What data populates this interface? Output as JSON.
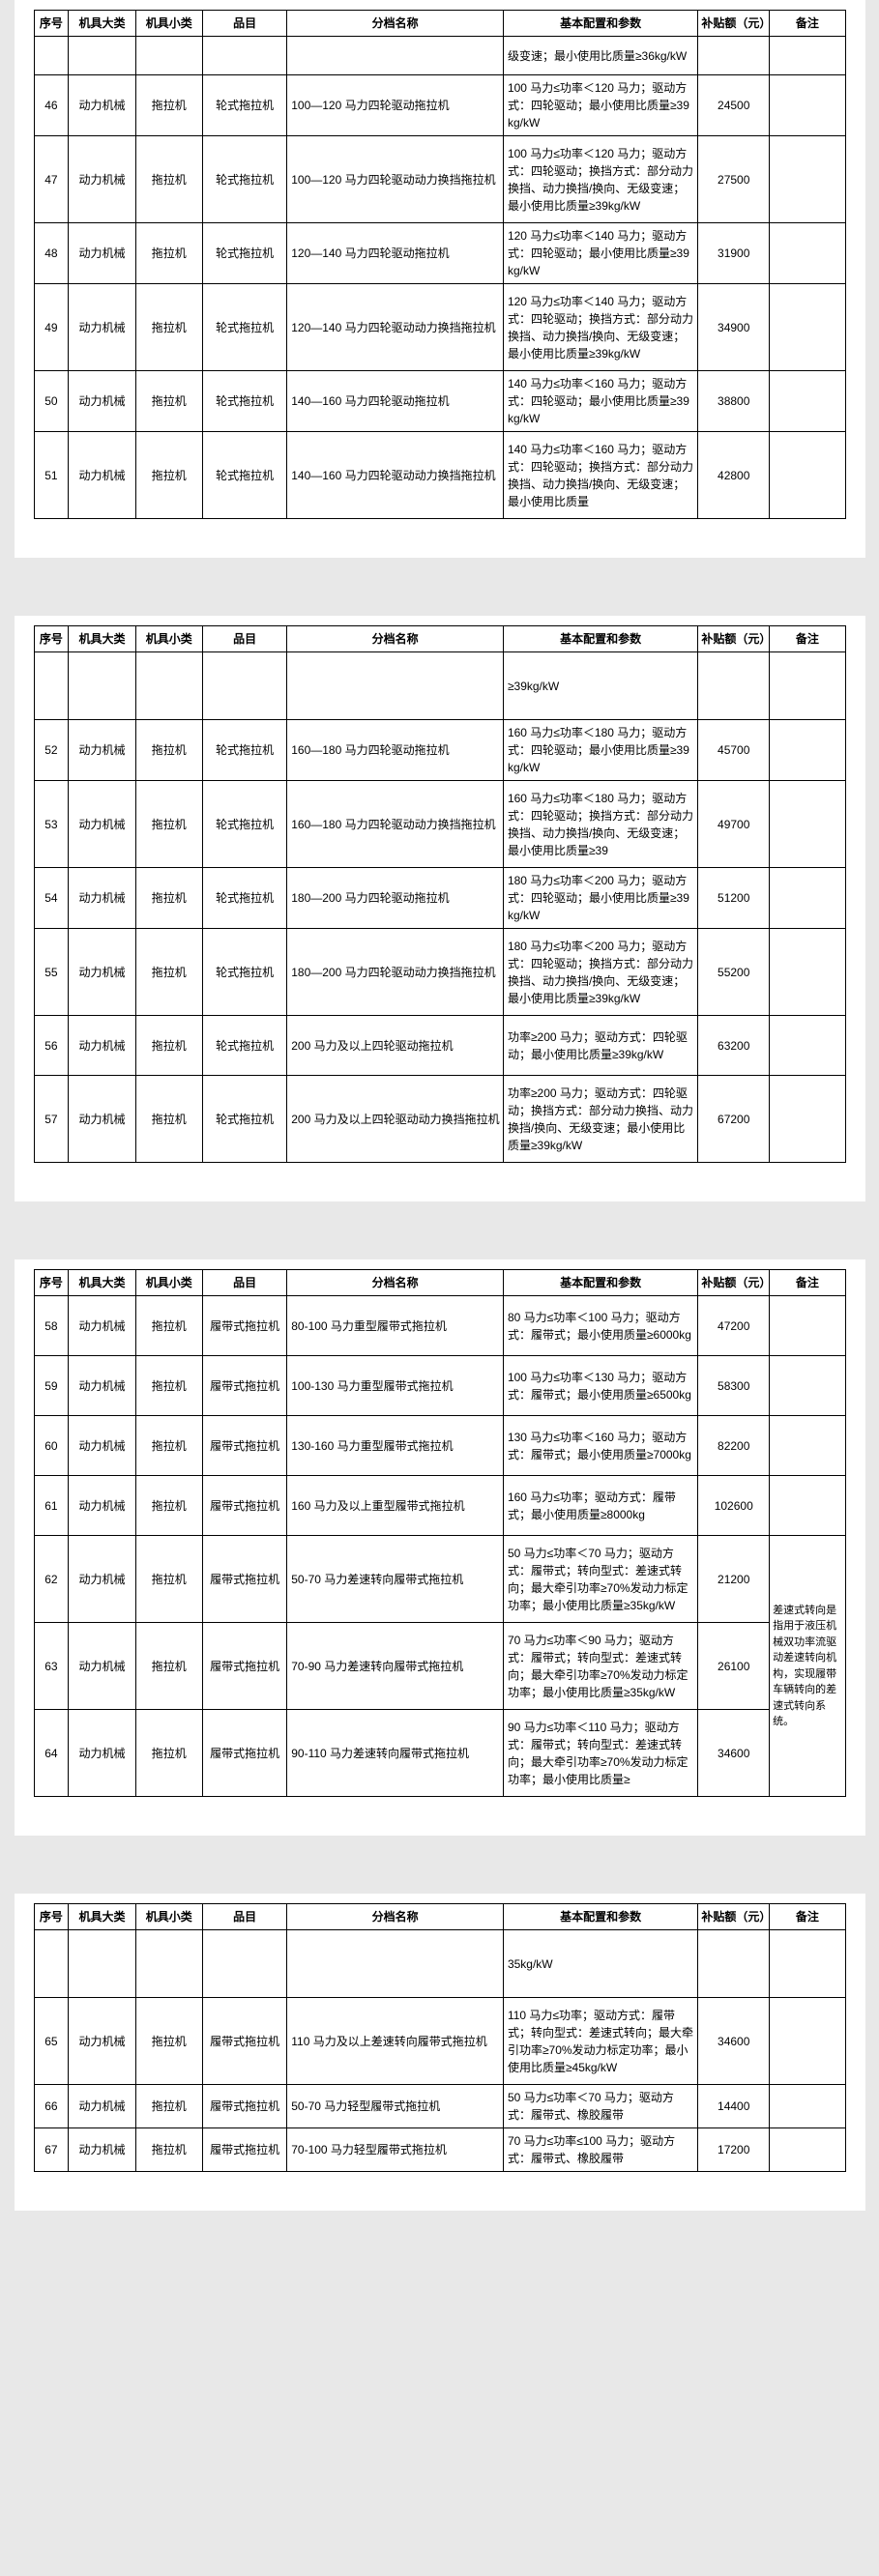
{
  "headers": {
    "seq": "序号",
    "cat1": "机具大类",
    "cat2": "机具小类",
    "item": "品目",
    "name": "分档名称",
    "spec": "基本配置和参数",
    "subsidy": "补贴额（元）",
    "note": "备注"
  },
  "page1": {
    "topFrag": "级变速；最小使用比质量≥36kg/kW",
    "rows": [
      {
        "seq": "46",
        "cat1": "动力机械",
        "cat2": "拖拉机",
        "item": "轮式拖拉机",
        "name": "100—120 马力四轮驱动拖拉机",
        "spec": "100 马力≤功率＜120 马力；驱动方式：四轮驱动；最小使用比质量≥39kg/kW",
        "sub": "24500"
      },
      {
        "seq": "47",
        "cat1": "动力机械",
        "cat2": "拖拉机",
        "item": "轮式拖拉机",
        "name": "100—120 马力四轮驱动动力换挡拖拉机",
        "spec": "100 马力≤功率＜120 马力；驱动方式：四轮驱动；换挡方式：部分动力换挡、动力换挡/换向、无级变速；最小使用比质量≥39kg/kW",
        "sub": "27500"
      },
      {
        "seq": "48",
        "cat1": "动力机械",
        "cat2": "拖拉机",
        "item": "轮式拖拉机",
        "name": "120—140 马力四轮驱动拖拉机",
        "spec": "120 马力≤功率＜140 马力；驱动方式：四轮驱动；最小使用比质量≥39kg/kW",
        "sub": "31900"
      },
      {
        "seq": "49",
        "cat1": "动力机械",
        "cat2": "拖拉机",
        "item": "轮式拖拉机",
        "name": "120—140 马力四轮驱动动力换挡拖拉机",
        "spec": "120 马力≤功率＜140 马力；驱动方式：四轮驱动；换挡方式：部分动力换挡、动力换挡/换向、无级变速；最小使用比质量≥39kg/kW",
        "sub": "34900"
      },
      {
        "seq": "50",
        "cat1": "动力机械",
        "cat2": "拖拉机",
        "item": "轮式拖拉机",
        "name": "140—160 马力四轮驱动拖拉机",
        "spec": "140 马力≤功率＜160 马力；驱动方式：四轮驱动；最小使用比质量≥39kg/kW",
        "sub": "38800"
      },
      {
        "seq": "51",
        "cat1": "动力机械",
        "cat2": "拖拉机",
        "item": "轮式拖拉机",
        "name": "140—160 马力四轮驱动动力换挡拖拉机",
        "spec": "140 马力≤功率＜160 马力；驱动方式：四轮驱动；换挡方式：部分动力换挡、动力换挡/换向、无级变速；最小使用比质量",
        "sub": "42800"
      }
    ]
  },
  "page2": {
    "topFrag": "≥39kg/kW",
    "rows": [
      {
        "seq": "52",
        "cat1": "动力机械",
        "cat2": "拖拉机",
        "item": "轮式拖拉机",
        "name": "160—180 马力四轮驱动拖拉机",
        "spec": "160 马力≤功率＜180 马力；驱动方式：四轮驱动；最小使用比质量≥39kg/kW",
        "sub": "45700"
      },
      {
        "seq": "53",
        "cat1": "动力机械",
        "cat2": "拖拉机",
        "item": "轮式拖拉机",
        "name": "160—180 马力四轮驱动动力换挡拖拉机",
        "spec": "160 马力≤功率＜180 马力；驱动方式：四轮驱动；换挡方式：部分动力换挡、动力换挡/换向、无级变速；最小使用比质量≥39",
        "sub": "49700"
      },
      {
        "seq": "54",
        "cat1": "动力机械",
        "cat2": "拖拉机",
        "item": "轮式拖拉机",
        "name": "180—200 马力四轮驱动拖拉机",
        "spec": "180 马力≤功率＜200 马力；驱动方式：四轮驱动；最小使用比质量≥39kg/kW",
        "sub": "51200"
      },
      {
        "seq": "55",
        "cat1": "动力机械",
        "cat2": "拖拉机",
        "item": "轮式拖拉机",
        "name": "180—200 马力四轮驱动动力换挡拖拉机",
        "spec": "180 马力≤功率＜200 马力；驱动方式：四轮驱动；换挡方式：部分动力换挡、动力换挡/换向、无级变速；最小使用比质量≥39kg/kW",
        "sub": "55200"
      },
      {
        "seq": "56",
        "cat1": "动力机械",
        "cat2": "拖拉机",
        "item": "轮式拖拉机",
        "name": "200 马力及以上四轮驱动拖拉机",
        "spec": "功率≥200 马力；驱动方式：四轮驱动；最小使用比质量≥39kg/kW",
        "sub": "63200"
      },
      {
        "seq": "57",
        "cat1": "动力机械",
        "cat2": "拖拉机",
        "item": "轮式拖拉机",
        "name": "200 马力及以上四轮驱动动力换挡拖拉机",
        "spec": "功率≥200 马力；驱动方式：四轮驱动；换挡方式：部分动力换挡、动力换挡/换向、无级变速；最小使用比质量≥39kg/kW",
        "sub": "67200"
      }
    ]
  },
  "page3": {
    "note": "差速式转向是指用于液压机械双功率流驱动差速转向机构，实现履带车辆转向的差速式转向系统。",
    "rows": [
      {
        "seq": "58",
        "cat1": "动力机械",
        "cat2": "拖拉机",
        "item": "履带式拖拉机",
        "name": "80-100 马力重型履带式拖拉机",
        "spec": "80 马力≤功率＜100 马力；驱动方式：履带式；最小使用质量≥6000kg",
        "sub": "47200"
      },
      {
        "seq": "59",
        "cat1": "动力机械",
        "cat2": "拖拉机",
        "item": "履带式拖拉机",
        "name": "100-130 马力重型履带式拖拉机",
        "spec": "100 马力≤功率＜130 马力；驱动方式：履带式；最小使用质量≥6500kg",
        "sub": "58300"
      },
      {
        "seq": "60",
        "cat1": "动力机械",
        "cat2": "拖拉机",
        "item": "履带式拖拉机",
        "name": "130-160 马力重型履带式拖拉机",
        "spec": "130 马力≤功率＜160 马力；驱动方式：履带式；最小使用质量≥7000kg",
        "sub": "82200"
      },
      {
        "seq": "61",
        "cat1": "动力机械",
        "cat2": "拖拉机",
        "item": "履带式拖拉机",
        "name": "160 马力及以上重型履带式拖拉机",
        "spec": "160 马力≤功率；驱动方式：履带式；最小使用质量≥8000kg",
        "sub": "102600"
      },
      {
        "seq": "62",
        "cat1": "动力机械",
        "cat2": "拖拉机",
        "item": "履带式拖拉机",
        "name": "50-70 马力差速转向履带式拖拉机",
        "spec": "50 马力≤功率＜70 马力；驱动方式：履带式；转向型式：差速式转向；最大牵引功率≥70%发动力标定功率；最小使用比质量≥35kg/kW",
        "sub": "21200"
      },
      {
        "seq": "63",
        "cat1": "动力机械",
        "cat2": "拖拉机",
        "item": "履带式拖拉机",
        "name": "70-90 马力差速转向履带式拖拉机",
        "spec": "70 马力≤功率＜90 马力；驱动方式：履带式；转向型式：差速式转向；最大牵引功率≥70%发动力标定功率；最小使用比质量≥35kg/kW",
        "sub": "26100"
      },
      {
        "seq": "64",
        "cat1": "动力机械",
        "cat2": "拖拉机",
        "item": "履带式拖拉机",
        "name": "90-110 马力差速转向履带式拖拉机",
        "spec": "90 马力≤功率＜110 马力；驱动方式：履带式；转向型式：差速式转向；最大牵引功率≥70%发动力标定功率；最小使用比质量≥",
        "sub": "34600"
      }
    ]
  },
  "page4": {
    "topFrag": "35kg/kW",
    "rows": [
      {
        "seq": "65",
        "cat1": "动力机械",
        "cat2": "拖拉机",
        "item": "履带式拖拉机",
        "name": "110 马力及以上差速转向履带式拖拉机",
        "spec": "110 马力≤功率；驱动方式：履带式；转向型式：差速式转向；最大牵引功率≥70%发动力标定功率；最小使用比质量≥45kg/kW",
        "sub": "34600"
      },
      {
        "seq": "66",
        "cat1": "动力机械",
        "cat2": "拖拉机",
        "item": "履带式拖拉机",
        "name": "50-70 马力轻型履带式拖拉机",
        "spec": "50 马力≤功率＜70 马力；驱动方式：履带式、橡胶履带",
        "sub": "14400"
      },
      {
        "seq": "67",
        "cat1": "动力机械",
        "cat2": "拖拉机",
        "item": "履带式拖拉机",
        "name": "70-100 马力轻型履带式拖拉机",
        "spec": "70 马力≤功率≤100 马力；驱动方式：履带式、橡胶履带",
        "sub": "17200"
      }
    ]
  }
}
